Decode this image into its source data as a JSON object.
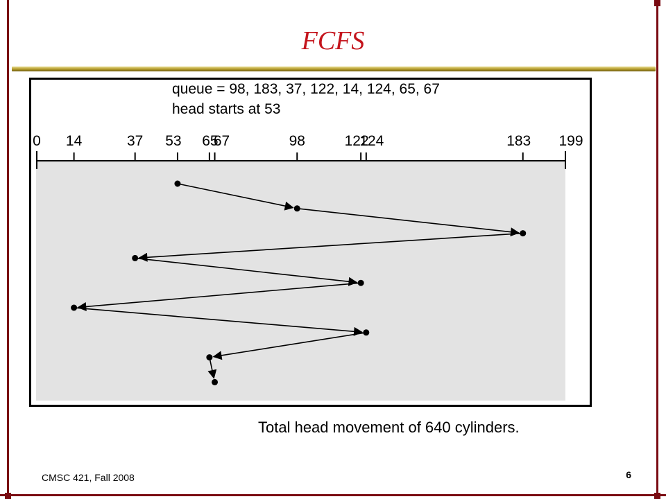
{
  "slide": {
    "title": "FCFS",
    "caption": "Total head movement of 640 cylinders.",
    "footer": "CMSC 421, Fall 2008",
    "page_number": "6"
  },
  "diagram": {
    "queue_label": "queue = 98, 183, 37, 122, 14, 124, 65, 67",
    "head_label": "head starts at 53",
    "axis_ticks": [
      0,
      14,
      37,
      53,
      65,
      67,
      98,
      122,
      124,
      183,
      199
    ],
    "axis_range": [
      0,
      199
    ],
    "head_start": 53,
    "service_order": [
      53,
      98,
      183,
      37,
      122,
      14,
      124,
      65,
      67
    ]
  },
  "colors": {
    "frame": "#7a0b12",
    "title": "#c4141c",
    "rule": "#b39a2a",
    "panel": "#e3e3e3",
    "ink": "#000000"
  }
}
